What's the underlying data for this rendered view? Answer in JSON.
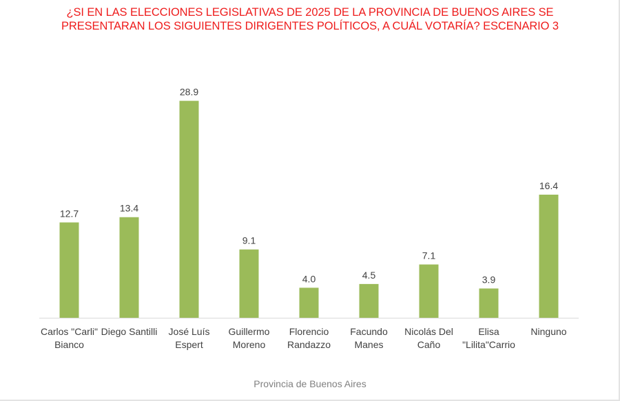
{
  "chart_data": {
    "type": "bar",
    "title": "¿SI EN LAS ELECCIONES LEGISLATIVAS DE 2025 DE LA PROVINCIA DE BUENOS AIRES SE PRESENTARAN LOS SIGUIENTES DIRIGENTES POLÍTICOS, A CUÁL VOTARÍA? ESCENARIO 3",
    "categories": [
      [
        "Carlos \"Carli\"",
        "Bianco"
      ],
      [
        "Diego Santilli"
      ],
      [
        "José Luís",
        "Espert"
      ],
      [
        "Guillermo",
        "Moreno"
      ],
      [
        "Florencio",
        "Randazzo"
      ],
      [
        "Facundo",
        "Manes"
      ],
      [
        "Nicolás Del",
        "Caño"
      ],
      [
        "Elisa",
        "\"Lilita\"Carrio"
      ],
      [
        "Ninguno"
      ]
    ],
    "values": [
      12.7,
      13.4,
      28.9,
      9.1,
      4.0,
      4.5,
      7.1,
      3.9,
      16.4
    ],
    "value_labels": [
      "12.7",
      "13.4",
      "28.9",
      "9.1",
      "4.0",
      "4.5",
      "7.1",
      "3.9",
      "16.4"
    ],
    "xlabel": "Provincia de Buenos Aires",
    "ylabel": "",
    "ylim": [
      0,
      35
    ],
    "grid": false,
    "bar_color": "#9bbb59",
    "title_color": "#ee1c1c"
  }
}
